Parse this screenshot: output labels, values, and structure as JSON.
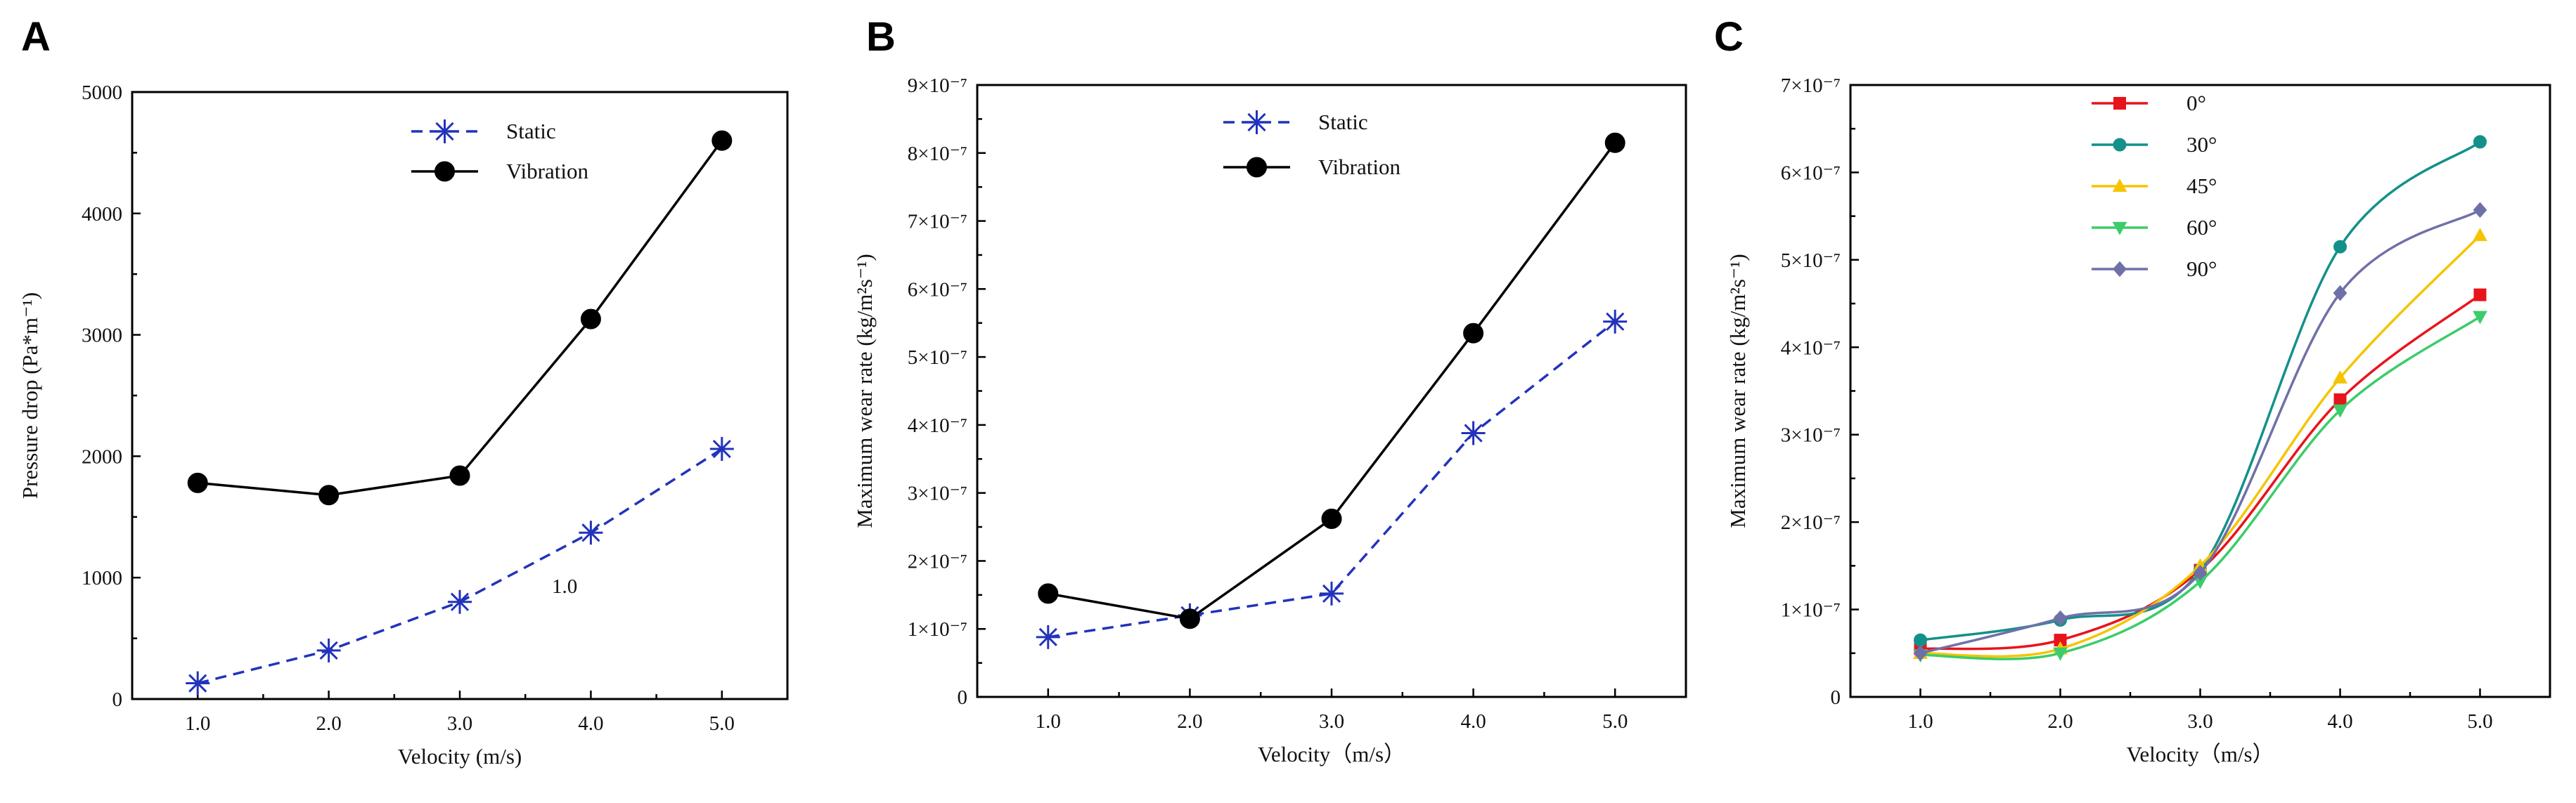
{
  "chart_data": [
    {
      "panel": "A",
      "type": "line",
      "xlabel": "Velocity (m/s)",
      "ylabel": "Pressure drop (Pa*m⁻¹)",
      "xlim": [
        0.5,
        5.5
      ],
      "ylim": [
        0,
        5000
      ],
      "xticks": [
        1,
        2,
        3,
        4,
        5
      ],
      "xtick_labels": [
        "1.0",
        "2.0",
        "3.0",
        "4.0",
        "5.0"
      ],
      "yticks": [
        0,
        1000,
        2000,
        3000,
        4000,
        5000
      ],
      "ytick_labels": [
        "0",
        "1000",
        "2000",
        "3000",
        "4000",
        "5000"
      ],
      "legend_position": "top-center",
      "annotation": "1.0",
      "series": [
        {
          "name": "Static",
          "color": "#2233bb",
          "style": "dashed",
          "marker": "asterisk",
          "x": [
            1,
            2,
            3,
            4,
            5
          ],
          "values": [
            130,
            400,
            800,
            1370,
            2060
          ]
        },
        {
          "name": "Vibration",
          "color": "#000000",
          "style": "solid",
          "marker": "circle",
          "x": [
            1,
            2,
            3,
            4,
            5
          ],
          "values": [
            1780,
            1680,
            1840,
            3130,
            4600
          ]
        }
      ]
    },
    {
      "panel": "B",
      "type": "line",
      "xlabel": "Velocity（m/s）",
      "ylabel": "Maximum wear rate (kg/m²s⁻¹)",
      "xlim": [
        0.5,
        5.5
      ],
      "ylim": [
        0,
        9
      ],
      "y_unit_exponent": -7,
      "xticks": [
        1,
        2,
        3,
        4,
        5
      ],
      "xtick_labels": [
        "1.0",
        "2.0",
        "3.0",
        "4.0",
        "5.0"
      ],
      "yticks": [
        0,
        1,
        2,
        3,
        4,
        5,
        6,
        7,
        8,
        9
      ],
      "ytick_labels": [
        "0",
        "1×10⁻⁷",
        "2×10⁻⁷",
        "3×10⁻⁷",
        "4×10⁻⁷",
        "5×10⁻⁷",
        "6×10⁻⁷",
        "7×10⁻⁷",
        "8×10⁻⁷",
        "9×10⁻⁷"
      ],
      "legend_position": "top-center",
      "series": [
        {
          "name": "Static",
          "color": "#2233bb",
          "style": "dashed",
          "marker": "asterisk",
          "x": [
            1,
            2,
            3,
            4,
            5
          ],
          "values": [
            0.88,
            1.2,
            1.52,
            3.88,
            5.52
          ]
        },
        {
          "name": "Vibration",
          "color": "#000000",
          "style": "solid",
          "marker": "circle",
          "x": [
            1,
            2,
            3,
            4,
            5
          ],
          "values": [
            1.52,
            1.15,
            2.62,
            5.35,
            8.15
          ]
        }
      ]
    },
    {
      "panel": "C",
      "type": "line",
      "smooth": true,
      "xlabel": "Velocity（m/s）",
      "ylabel": "Maximum wear rate (kg/m²s⁻¹)",
      "xlim": [
        0.5,
        5.5
      ],
      "ylim": [
        0,
        7
      ],
      "y_unit_exponent": -7,
      "xticks": [
        1,
        2,
        3,
        4,
        5
      ],
      "xtick_labels": [
        "1.0",
        "2.0",
        "3.0",
        "4.0",
        "5.0"
      ],
      "yticks": [
        0,
        1,
        2,
        3,
        4,
        5,
        6,
        7
      ],
      "ytick_labels": [
        "0",
        "1×10⁻⁷",
        "2×10⁻⁷",
        "3×10⁻⁷",
        "4×10⁻⁷",
        "5×10⁻⁷",
        "6×10⁻⁷",
        "7×10⁻⁷"
      ],
      "legend_position": "top-left",
      "series": [
        {
          "name": "0°",
          "color": "#e8141b",
          "marker": "square",
          "x": [
            1,
            2,
            3,
            4,
            5
          ],
          "values": [
            0.55,
            0.65,
            1.45,
            3.4,
            4.6
          ]
        },
        {
          "name": "30°",
          "color": "#14908a",
          "marker": "circle",
          "x": [
            1,
            2,
            3,
            4,
            5
          ],
          "values": [
            0.65,
            0.88,
            1.45,
            5.15,
            6.35
          ]
        },
        {
          "name": "45°",
          "color": "#f5c400",
          "marker": "triangle-up",
          "x": [
            1,
            2,
            3,
            4,
            5
          ],
          "values": [
            0.5,
            0.55,
            1.5,
            3.65,
            5.28
          ]
        },
        {
          "name": "60°",
          "color": "#3ccc6a",
          "marker": "triangle-down",
          "x": [
            1,
            2,
            3,
            4,
            5
          ],
          "values": [
            0.48,
            0.5,
            1.32,
            3.28,
            4.35
          ]
        },
        {
          "name": "90°",
          "color": "#7070a8",
          "marker": "diamond",
          "x": [
            1,
            2,
            3,
            4,
            5
          ],
          "values": [
            0.5,
            0.9,
            1.42,
            4.62,
            5.57
          ]
        }
      ]
    }
  ]
}
